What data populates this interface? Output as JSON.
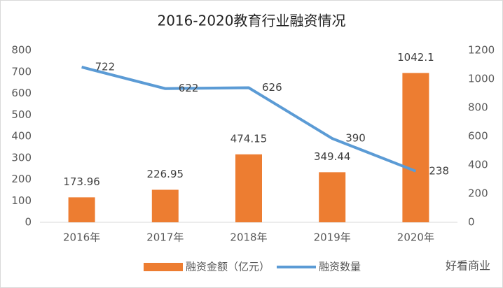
{
  "chart_data": {
    "type": "bar-line",
    "title": "2016-2020教育行业融资情况",
    "categories": [
      "2016年",
      "2017年",
      "2018年",
      "2019年",
      "2020年"
    ],
    "series": [
      {
        "name": "融资金额（亿元）",
        "type": "bar",
        "axis": "y2",
        "color": "#ed7d31",
        "values": [
          173.96,
          226.95,
          474.15,
          349.44,
          1042.1
        ]
      },
      {
        "name": "融资数量",
        "type": "line",
        "axis": "y",
        "color": "#5b9bd5",
        "values": [
          722,
          622,
          626,
          390,
          238
        ]
      }
    ],
    "ylim": [
      0,
      800
    ],
    "yticks": [
      0,
      100,
      200,
      300,
      400,
      500,
      600,
      700,
      800
    ],
    "y2lim": [
      0,
      1200
    ],
    "y2ticks": [
      0,
      200,
      400,
      600,
      800,
      1000,
      1200
    ],
    "legend": "bottom",
    "watermark": "好看商业"
  }
}
